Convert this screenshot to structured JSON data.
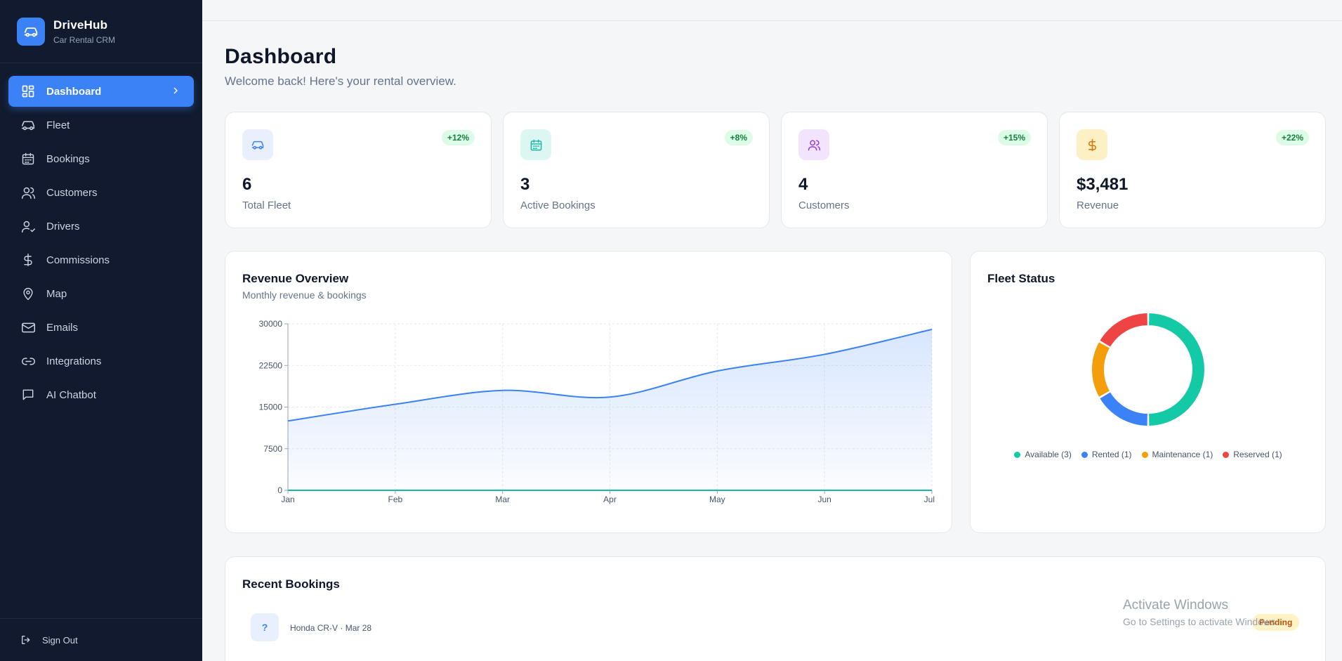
{
  "brand": {
    "name": "DriveHub",
    "subtitle": "Car Rental CRM"
  },
  "sidebar": {
    "items": [
      {
        "label": "Dashboard",
        "icon": "dashboard-icon"
      },
      {
        "label": "Fleet",
        "icon": "car-icon"
      },
      {
        "label": "Bookings",
        "icon": "calendar-icon"
      },
      {
        "label": "Customers",
        "icon": "users-icon"
      },
      {
        "label": "Drivers",
        "icon": "user-check-icon"
      },
      {
        "label": "Commissions",
        "icon": "dollar-icon"
      },
      {
        "label": "Map",
        "icon": "map-pin-icon"
      },
      {
        "label": "Emails",
        "icon": "mail-icon"
      },
      {
        "label": "Integrations",
        "icon": "link-icon"
      },
      {
        "label": "AI Chatbot",
        "icon": "chat-icon"
      }
    ],
    "active": "Dashboard",
    "signout_label": "Sign Out"
  },
  "header": {
    "title": "Dashboard",
    "subtitle": "Welcome back! Here's your rental overview."
  },
  "stats": [
    {
      "value": "6",
      "label": "Total Fleet",
      "change": "+12%",
      "icon": "car-icon",
      "color": "#3b82f6",
      "bg": "#e8effd"
    },
    {
      "value": "3",
      "label": "Active Bookings",
      "change": "+8%",
      "icon": "calendar-icon",
      "color": "#14b8a6",
      "bg": "#dcf7f1"
    },
    {
      "value": "4",
      "label": "Customers",
      "change": "+15%",
      "icon": "users-icon",
      "color": "#9333ea",
      "bg": "#f1e4fc"
    },
    {
      "value": "$3,481",
      "label": "Revenue",
      "change": "+22%",
      "icon": "dollar-icon",
      "color": "#d97706",
      "bg": "#fdf0c4"
    }
  ],
  "revenue": {
    "title": "Revenue Overview",
    "subtitle": "Monthly revenue & bookings"
  },
  "fleet_status": {
    "title": "Fleet Status"
  },
  "recent_bookings": {
    "title": "Recent Bookings",
    "items": [
      {
        "icon_text": "?",
        "text": "Honda CR-V · Mar 28",
        "status": "Pending"
      }
    ]
  },
  "watermark": {
    "line1": "Activate Windows",
    "line2": "Go to Settings to activate Windows."
  },
  "colors": {
    "accent": "#3b82f6",
    "sidebar_bg": "#111a2e",
    "available": "#14c9a5",
    "rented": "#3b82f6",
    "maintenance": "#f59e0b",
    "reserved": "#ef4444"
  },
  "chart_data": [
    {
      "type": "area",
      "x": [
        "Jan",
        "Feb",
        "Mar",
        "Apr",
        "May",
        "Jun",
        "Jul"
      ],
      "yticks": [
        0,
        7500,
        15000,
        22500,
        30000
      ],
      "ylim": [
        0,
        30000
      ],
      "series": [
        {
          "values": [
            12500,
            15500,
            18000,
            16800,
            21500,
            24500,
            29000
          ],
          "color": "#3b82f6"
        },
        {
          "values": [
            0,
            0,
            0,
            0,
            0,
            0,
            0
          ],
          "color": "#14b8a6"
        }
      ],
      "grid": true
    },
    {
      "type": "pie",
      "labels": [
        "Available (3)",
        "Rented (1)",
        "Maintenance (1)",
        "Reserved (1)"
      ],
      "values": [
        3,
        1,
        1,
        1
      ],
      "colors": [
        "#14c9a5",
        "#3b82f6",
        "#f59e0b",
        "#ef4444"
      ],
      "legend": "bottom"
    }
  ]
}
